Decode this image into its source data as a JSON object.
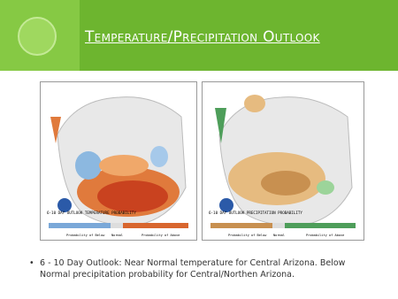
{
  "header": {
    "title": "Temperature/Precipitation Outlook"
  },
  "maps": [
    {
      "caption": "6-10 DAY OUTLOOK TEMPERATURE PROBABILITY",
      "legend": {
        "below": "Probability of Below",
        "normal": "Normal",
        "above": "Probability of Above"
      }
    },
    {
      "caption": "6-10 DAY OUTLOOK PRECIPITATION PROBABILITY",
      "legend": {
        "below": "Probability of Below",
        "normal": "Normal",
        "above": "Probability of Above"
      }
    }
  ],
  "bullets": [
    "6 - 10 Day Outlook: Near Normal temperature for Central Arizona. Below Normal precipitation probability for Central/Northen Arizona."
  ]
}
